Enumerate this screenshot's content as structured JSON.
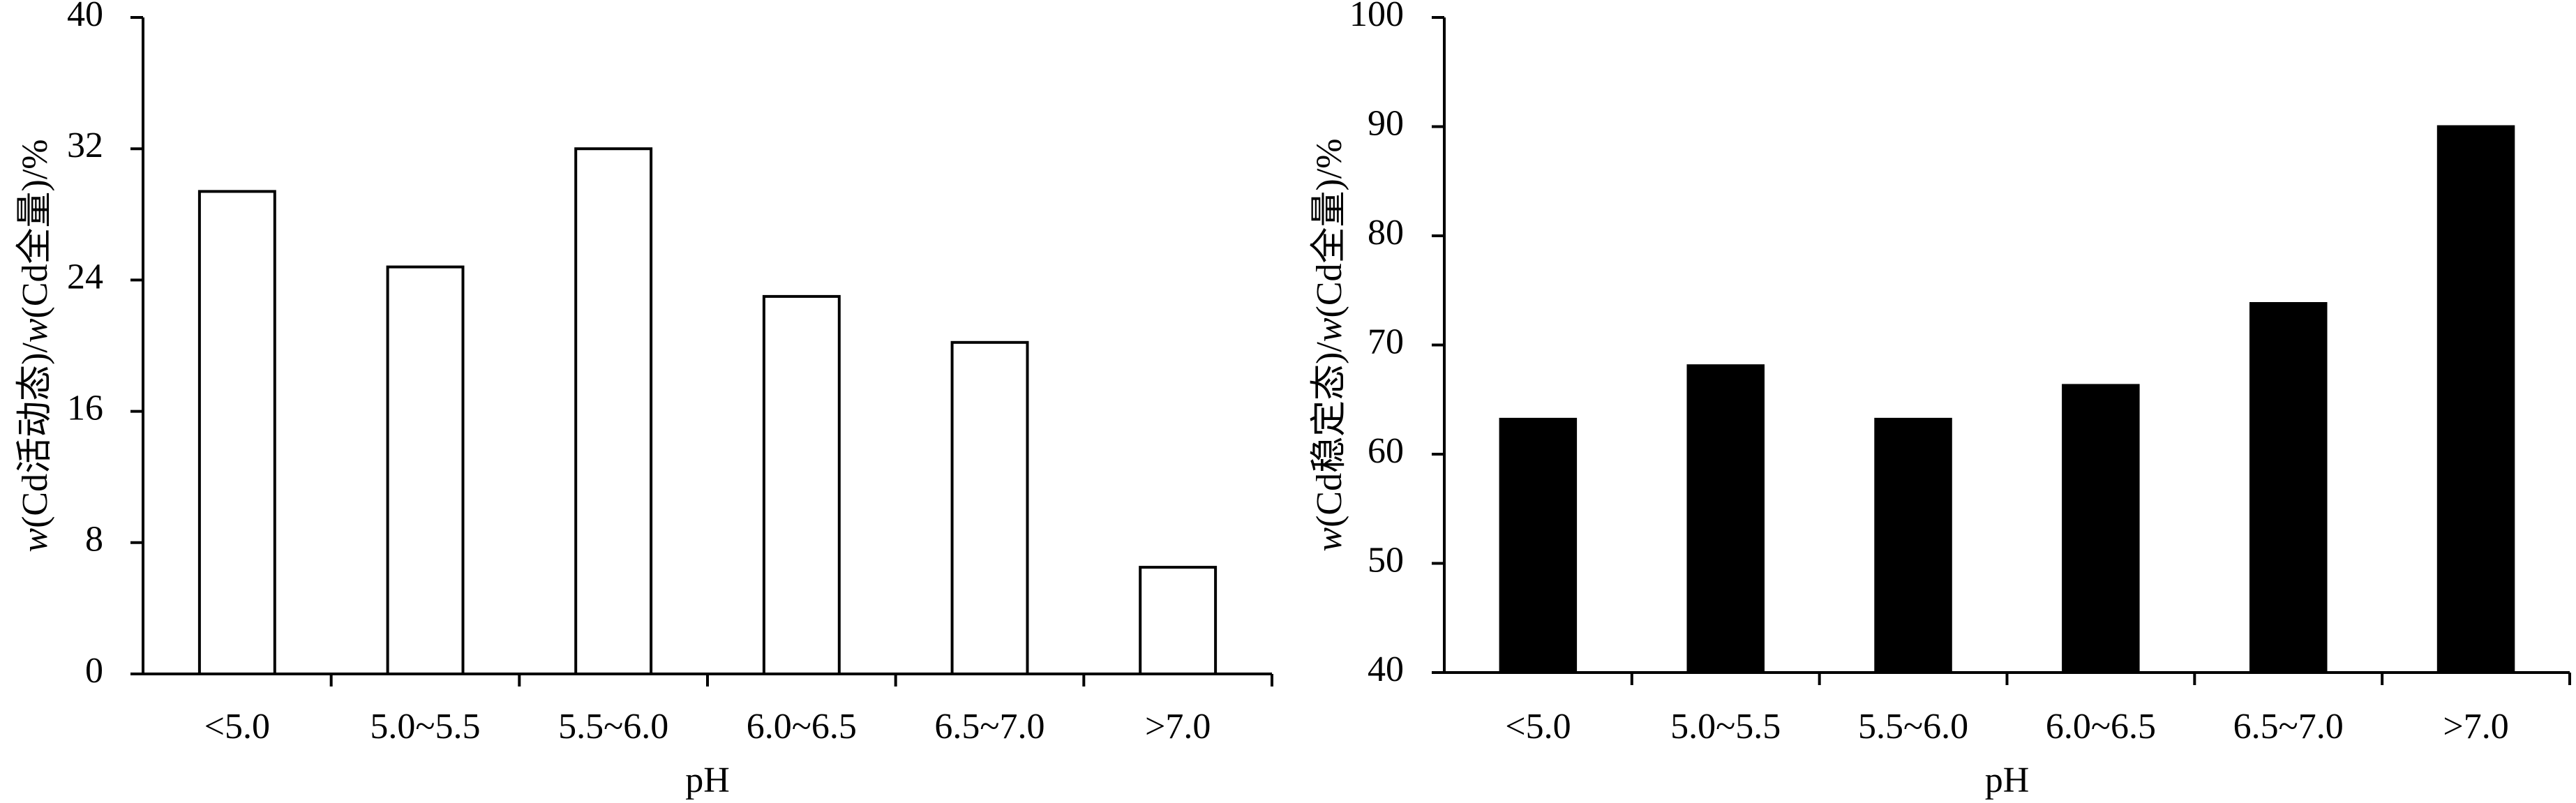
{
  "chart_data": [
    {
      "type": "bar",
      "categories": [
        "<5.0",
        "5.0~5.5",
        "5.5~6.0",
        "6.0~6.5",
        "6.5~7.0",
        ">7.0"
      ],
      "values": [
        29.4,
        24.8,
        32.0,
        23.0,
        20.2,
        6.5
      ],
      "xlabel": "pH",
      "ylabel_var1": "w",
      "ylabel_mid1": "(Cd活动态)/",
      "ylabel_var2": "w",
      "ylabel_mid2": "(Cd全量)/%",
      "ylim": [
        0,
        40
      ],
      "yticks": [
        0,
        8,
        16,
        24,
        32,
        40
      ],
      "bar_fill": "#ffffff",
      "bar_stroke": "#000000",
      "grid": false
    },
    {
      "type": "bar",
      "categories": [
        "<5.0",
        "5.0~5.5",
        "5.5~6.0",
        "6.0~6.5",
        "6.5~7.0",
        ">7.0"
      ],
      "values": [
        63.2,
        68.1,
        63.2,
        66.3,
        73.8,
        90.0
      ],
      "xlabel": "pH",
      "ylabel_var1": "w",
      "ylabel_mid1": "(Cd稳定态)/",
      "ylabel_var2": "w",
      "ylabel_mid2": "(Cd全量)/%",
      "ylim": [
        40,
        100
      ],
      "yticks": [
        40,
        50,
        60,
        70,
        80,
        90,
        100
      ],
      "bar_fill": "#000000",
      "bar_stroke": "#000000",
      "grid": false
    }
  ]
}
